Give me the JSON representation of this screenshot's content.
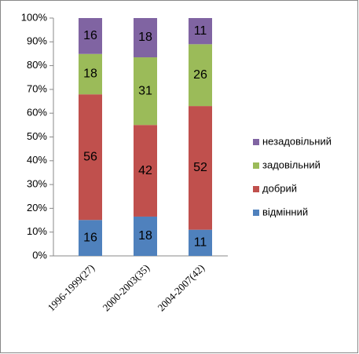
{
  "chart_data": {
    "type": "bar",
    "stack": "percent",
    "categories": [
      "1996-1999(27)",
      "2000-2003(35)",
      "2004-2007(42)"
    ],
    "series": [
      {
        "name": "відмінний",
        "color": "#4f81bd",
        "values": [
          16,
          18,
          11
        ]
      },
      {
        "name": "добрий",
        "color": "#c0504d",
        "values": [
          56,
          42,
          52
        ]
      },
      {
        "name": "задовільний",
        "color": "#9bbb59",
        "values": [
          18,
          31,
          26
        ]
      },
      {
        "name": "незадовільний",
        "color": "#8064a2",
        "values": [
          16,
          18,
          11
        ]
      }
    ],
    "ylim": [
      0,
      100
    ],
    "yticks": [
      {
        "value": 0,
        "label": "0%"
      },
      {
        "value": 10,
        "label": "10%"
      },
      {
        "value": 20,
        "label": "20%"
      },
      {
        "value": 30,
        "label": "30%"
      },
      {
        "value": 40,
        "label": "40%"
      },
      {
        "value": 50,
        "label": "50%"
      },
      {
        "value": 60,
        "label": "60%"
      },
      {
        "value": 70,
        "label": "70%"
      },
      {
        "value": 80,
        "label": "80%"
      },
      {
        "value": 90,
        "label": "90%"
      },
      {
        "value": 100,
        "label": "100%"
      }
    ],
    "grid": false,
    "legend": "right"
  }
}
